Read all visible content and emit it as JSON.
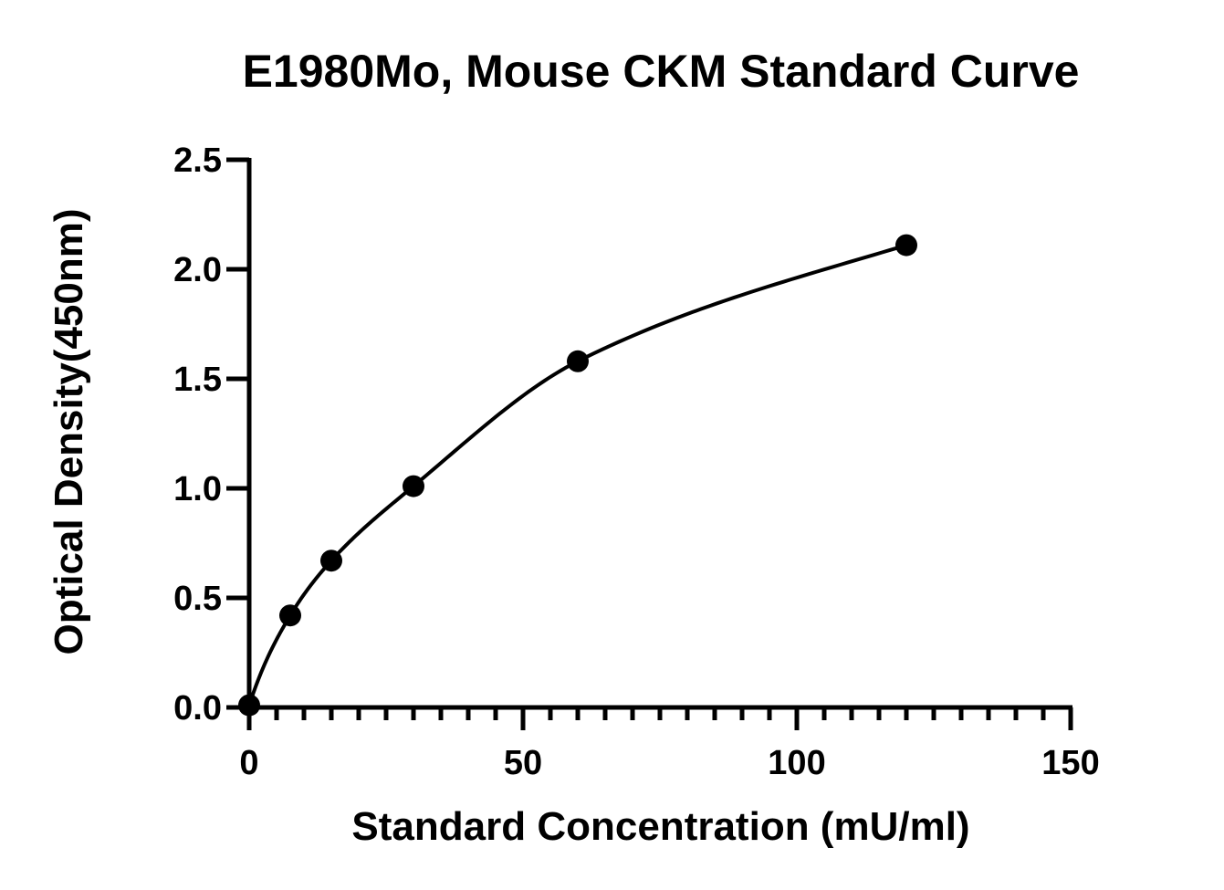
{
  "chart_data": {
    "type": "scatter",
    "title": "E1980Mo, Mouse CKM Standard Curve",
    "xlabel": "Standard Concentration (mU/ml)",
    "ylabel": "Optical Density(450nm)",
    "xlim": [
      0,
      150
    ],
    "ylim": [
      0,
      2.5
    ],
    "x_ticks": [
      "0",
      "50",
      "100",
      "150"
    ],
    "x_tick_values": [
      0,
      50,
      100,
      150
    ],
    "x_minor_step": 5,
    "y_ticks": [
      "0.0",
      "0.5",
      "1.0",
      "1.5",
      "2.0",
      "2.5"
    ],
    "y_tick_values": [
      0,
      0.5,
      1.0,
      1.5,
      2.0,
      2.5
    ],
    "grid": false,
    "legend": "none",
    "series": [
      {
        "x": [
          0,
          7.5,
          15,
          30,
          60,
          120
        ],
        "y": [
          0.01,
          0.42,
          0.67,
          1.01,
          1.58,
          2.11
        ]
      }
    ],
    "fit_curve": true
  }
}
